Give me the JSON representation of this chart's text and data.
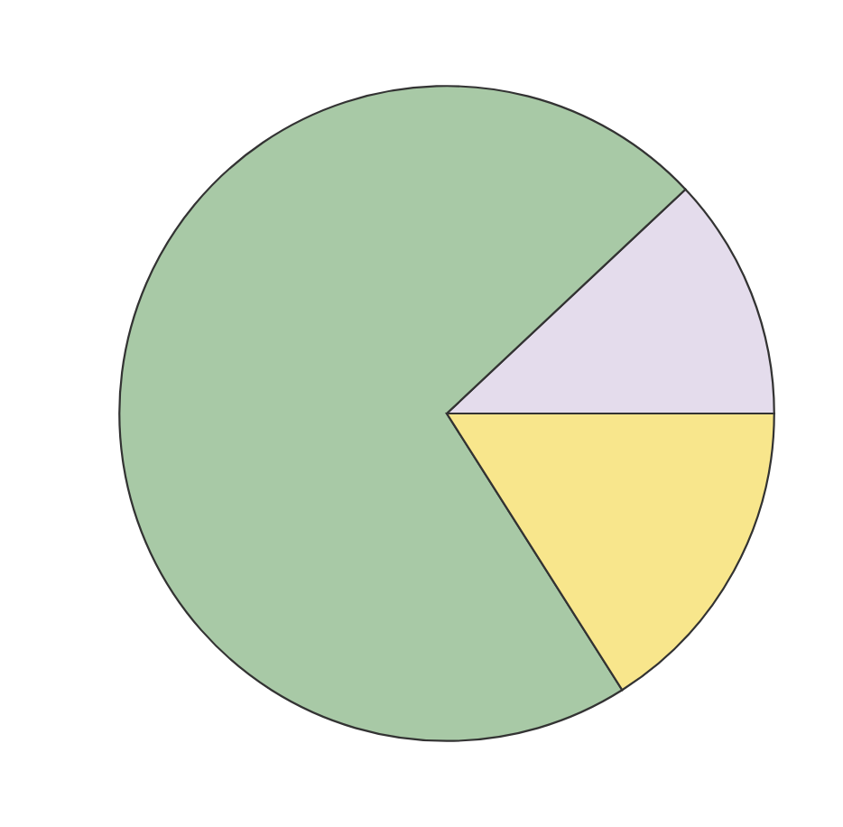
{
  "chart_data": {
    "type": "pie",
    "categories": [
      null,
      null,
      null
    ],
    "values": [
      12,
      72,
      16
    ],
    "colors": [
      "#e4dcec",
      "#a8c9a6",
      "#f8e68c"
    ]
  }
}
